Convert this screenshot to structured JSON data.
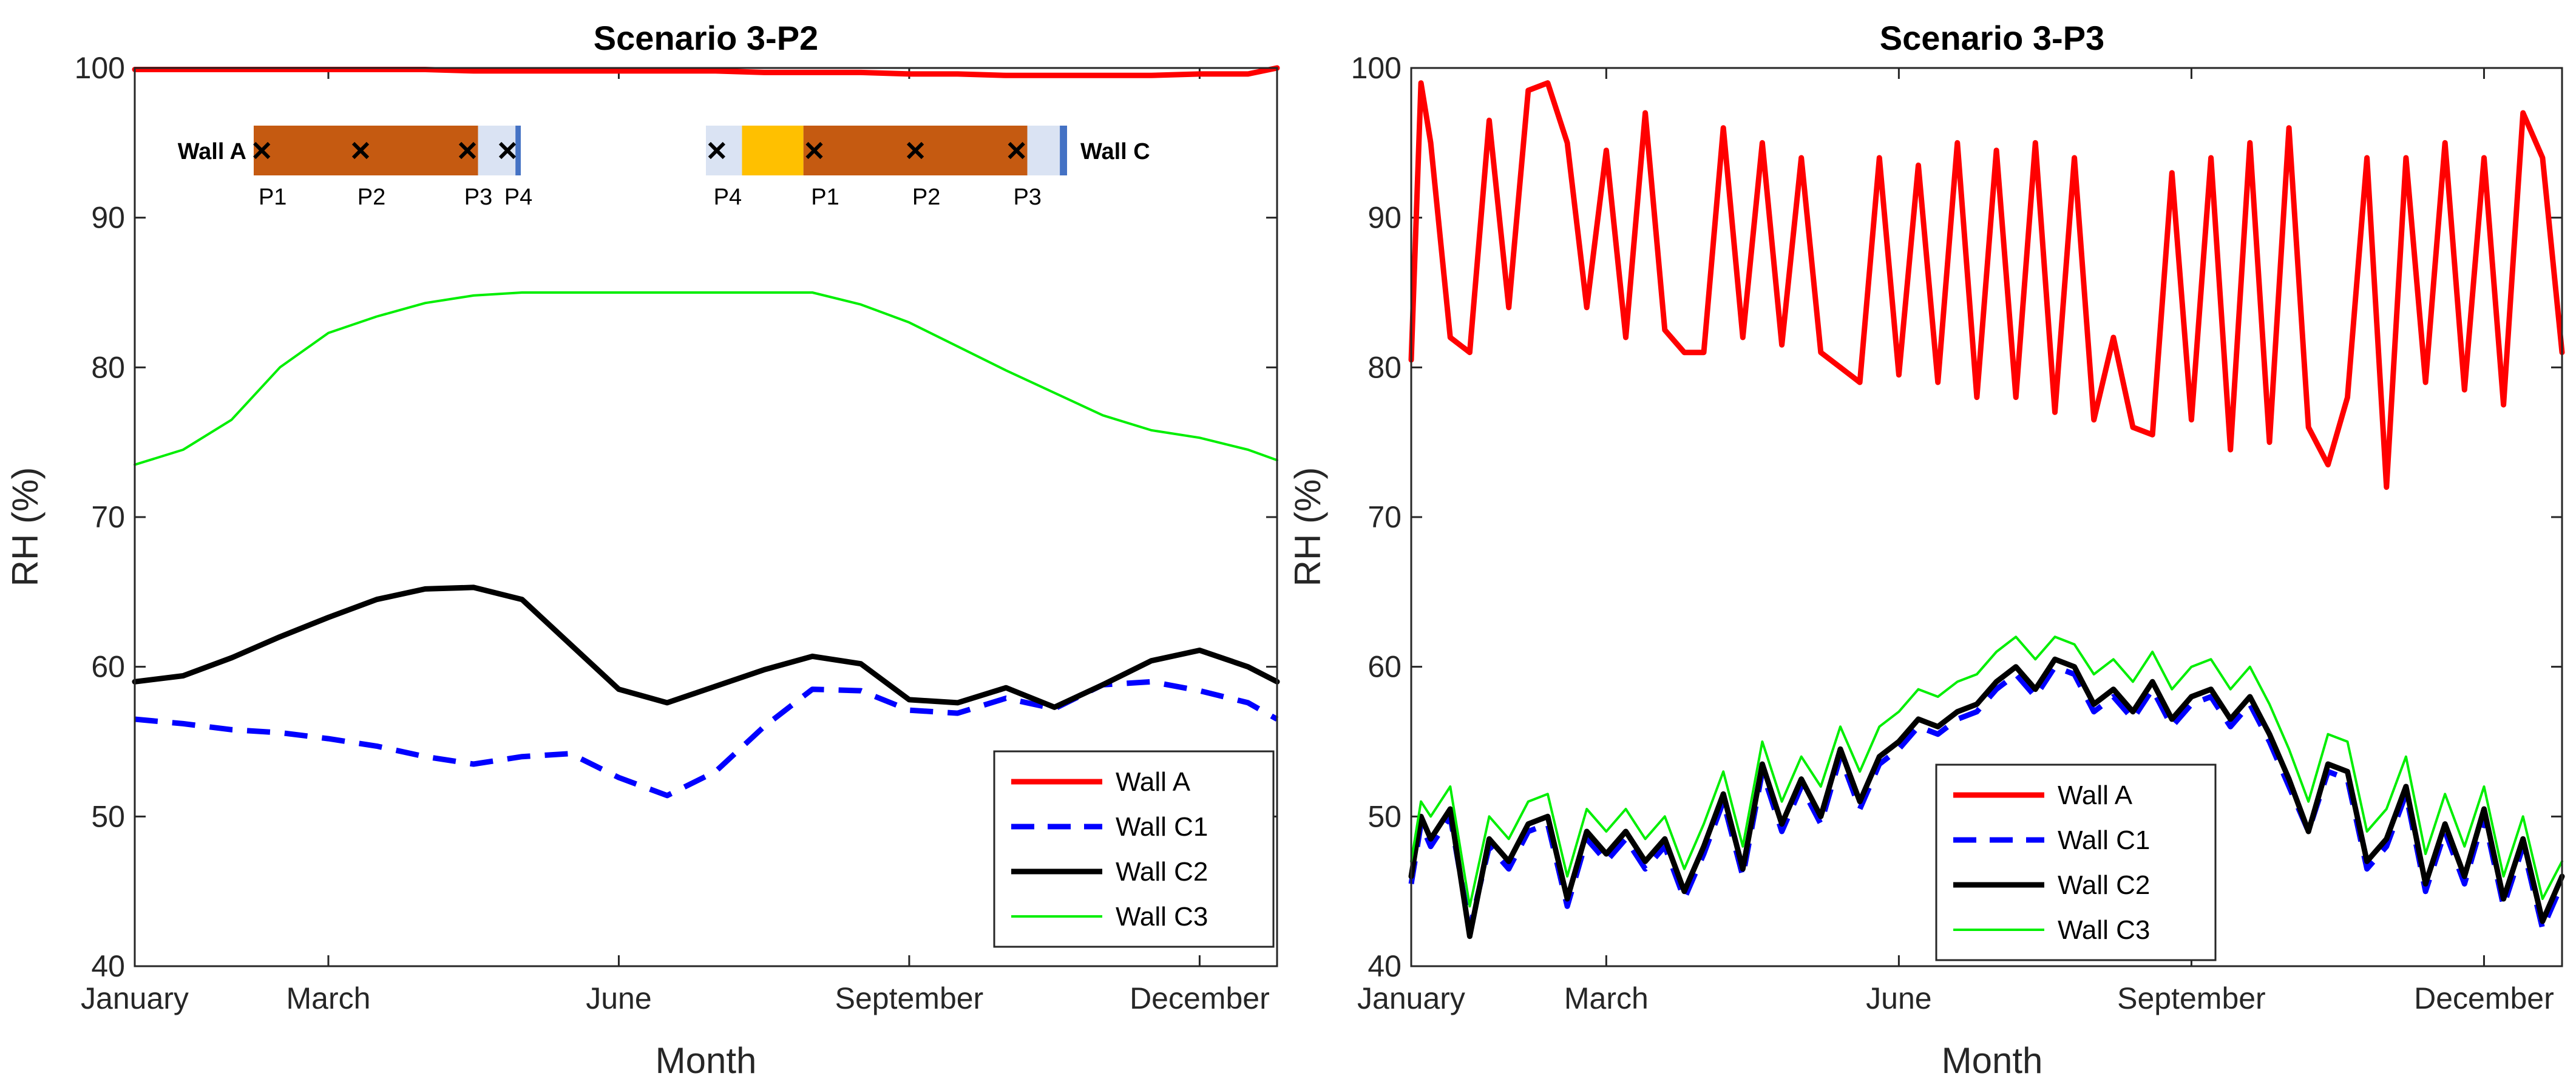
{
  "chart_data": [
    {
      "type": "line",
      "title": "Scenario 3-P2",
      "xlabel": "Month",
      "ylabel": "RH (%)",
      "xlim": [
        1,
        12.8
      ],
      "ylim": [
        40,
        100
      ],
      "yticks": [
        40,
        50,
        60,
        70,
        80,
        90,
        100
      ],
      "xticks": [
        {
          "month": 1,
          "label": "January"
        },
        {
          "month": 3,
          "label": "March"
        },
        {
          "month": 6,
          "label": "June"
        },
        {
          "month": 9,
          "label": "September"
        },
        {
          "month": 12,
          "label": "December"
        }
      ],
      "x": [
        1.0,
        1.5,
        2.0,
        2.5,
        3.0,
        3.5,
        4.0,
        4.5,
        5.0,
        5.5,
        6.0,
        6.5,
        7.0,
        7.5,
        8.0,
        8.5,
        9.0,
        9.5,
        10.0,
        10.5,
        11.0,
        11.5,
        12.0,
        12.5,
        12.8
      ],
      "series": [
        {
          "name": "Wall A",
          "color": "#ff0000",
          "dash": "solid",
          "width": "thick",
          "values": [
            99.9,
            99.9,
            99.9,
            99.9,
            99.9,
            99.9,
            99.9,
            99.8,
            99.8,
            99.8,
            99.8,
            99.8,
            99.8,
            99.7,
            99.7,
            99.7,
            99.6,
            99.6,
            99.5,
            99.5,
            99.5,
            99.5,
            99.6,
            99.6,
            100.0
          ]
        },
        {
          "name": "Wall C1",
          "color": "#0000ff",
          "dash": "dashed",
          "width": "thick",
          "values": [
            56.5,
            56.2,
            55.8,
            55.6,
            55.2,
            54.7,
            54.0,
            53.5,
            54.0,
            54.2,
            52.6,
            51.4,
            53.0,
            56.0,
            58.5,
            58.4,
            57.1,
            56.9,
            57.9,
            57.2,
            58.8,
            59.0,
            58.4,
            57.6,
            56.5
          ]
        },
        {
          "name": "Wall C2",
          "color": "#000000",
          "dash": "solid",
          "width": "thick",
          "values": [
            59.0,
            59.4,
            60.6,
            62.0,
            63.3,
            64.5,
            65.2,
            65.3,
            64.5,
            61.5,
            58.5,
            57.6,
            58.7,
            59.8,
            60.7,
            60.2,
            57.8,
            57.6,
            58.6,
            57.3,
            58.8,
            60.4,
            61.1,
            60.0,
            59.0
          ]
        },
        {
          "name": "Wall C3",
          "color": "#00ee00",
          "dash": "solid",
          "width": "thin",
          "values": [
            73.5,
            74.5,
            76.5,
            80.0,
            82.3,
            83.4,
            84.3,
            84.8,
            85.0,
            85.0,
            85.0,
            85.0,
            85.0,
            85.0,
            85.0,
            84.2,
            83.0,
            81.4,
            79.8,
            78.3,
            76.8,
            75.8,
            75.3,
            74.5,
            73.8
          ]
        }
      ],
      "legend": {
        "position": "bottom-right",
        "entries": [
          "Wall A",
          "Wall C1",
          "Wall C2",
          "Wall C3"
        ]
      },
      "inset": {
        "wall_a": {
          "label": "Wall A",
          "layers": [
            {
              "color": "#c55a11",
              "share": 0.84
            },
            {
              "color": "#dae3f3",
              "share": 0.14
            },
            {
              "color": "#4472c4",
              "share": 0.02
            }
          ],
          "points": [
            {
              "label": "P1",
              "pos": 0.03
            },
            {
              "label": "P2",
              "pos": 0.4
            },
            {
              "label": "P3",
              "pos": 0.8
            },
            {
              "label": "P4",
              "pos": 0.95
            }
          ]
        },
        "wall_c": {
          "label": "Wall C",
          "layers": [
            {
              "color": "#dae3f3",
              "share": 0.1
            },
            {
              "color": "#ffc000",
              "share": 0.17
            },
            {
              "color": "#c55a11",
              "share": 0.62
            },
            {
              "color": "#dae3f3",
              "share": 0.09
            },
            {
              "color": "#4472c4",
              "share": 0.02
            }
          ],
          "points": [
            {
              "label": "P4",
              "pos": 0.03
            },
            {
              "label": "P1",
              "pos": 0.3
            },
            {
              "label": "P2",
              "pos": 0.58
            },
            {
              "label": "P3",
              "pos": 0.86
            }
          ]
        }
      }
    },
    {
      "type": "line",
      "title": "Scenario 3-P3",
      "xlabel": "Month",
      "ylabel": "RH (%)",
      "xlim": [
        1,
        12.8
      ],
      "ylim": [
        40,
        100
      ],
      "yticks": [
        40,
        50,
        60,
        70,
        80,
        90,
        100
      ],
      "xticks": [
        {
          "month": 1,
          "label": "January"
        },
        {
          "month": 3,
          "label": "March"
        },
        {
          "month": 6,
          "label": "June"
        },
        {
          "month": 9,
          "label": "September"
        },
        {
          "month": 12,
          "label": "December"
        }
      ],
      "x": [
        1.0,
        1.1,
        1.2,
        1.4,
        1.6,
        1.8,
        2.0,
        2.2,
        2.4,
        2.6,
        2.8,
        3.0,
        3.2,
        3.4,
        3.6,
        3.8,
        4.0,
        4.2,
        4.4,
        4.6,
        4.8,
        5.0,
        5.2,
        5.4,
        5.6,
        5.8,
        6.0,
        6.2,
        6.4,
        6.6,
        6.8,
        7.0,
        7.2,
        7.4,
        7.6,
        7.8,
        8.0,
        8.2,
        8.4,
        8.6,
        8.8,
        9.0,
        9.2,
        9.4,
        9.6,
        9.8,
        10.0,
        10.2,
        10.4,
        10.6,
        10.8,
        11.0,
        11.2,
        11.4,
        11.6,
        11.8,
        12.0,
        12.2,
        12.4,
        12.6,
        12.8
      ],
      "series": [
        {
          "name": "Wall A",
          "color": "#ff0000",
          "dash": "solid",
          "width": "thick",
          "values": [
            80.5,
            99.0,
            95.0,
            82.0,
            81.0,
            96.5,
            84.0,
            98.5,
            99.0,
            95.0,
            84.0,
            94.5,
            82.0,
            97.0,
            82.5,
            81.0,
            81.0,
            96.0,
            82.0,
            95.0,
            81.5,
            94.0,
            81.0,
            80.0,
            79.0,
            94.0,
            79.5,
            93.5,
            79.0,
            95.0,
            78.0,
            94.5,
            78.0,
            95.0,
            77.0,
            94.0,
            76.5,
            82.0,
            76.0,
            75.5,
            93.0,
            76.5,
            94.0,
            74.5,
            95.0,
            75.0,
            96.0,
            76.0,
            73.5,
            78.0,
            94.0,
            72.0,
            94.0,
            79.0,
            95.0,
            78.5,
            94.0,
            77.5,
            97.0,
            94.0,
            81.0
          ]
        },
        {
          "name": "Wall C1",
          "color": "#0000ff",
          "dash": "dashed",
          "width": "thick",
          "values": [
            45.5,
            49.5,
            48.0,
            50.0,
            42.5,
            48.0,
            46.5,
            49.0,
            49.5,
            44.0,
            48.5,
            47.0,
            48.5,
            46.5,
            48.0,
            44.5,
            47.5,
            51.0,
            46.0,
            53.0,
            49.0,
            52.0,
            49.5,
            54.0,
            50.5,
            53.5,
            54.5,
            56.0,
            55.5,
            56.5,
            57.0,
            58.5,
            59.5,
            58.0,
            60.0,
            59.5,
            57.0,
            58.0,
            56.5,
            58.5,
            56.0,
            57.5,
            58.0,
            56.0,
            57.5,
            55.0,
            52.0,
            49.0,
            53.0,
            52.5,
            46.5,
            48.0,
            51.5,
            45.0,
            49.0,
            45.5,
            50.0,
            44.0,
            48.0,
            42.5,
            45.5
          ]
        },
        {
          "name": "Wall C2",
          "color": "#000000",
          "dash": "solid",
          "width": "thick",
          "values": [
            46.0,
            50.0,
            48.5,
            50.5,
            42.0,
            48.5,
            47.0,
            49.5,
            50.0,
            44.5,
            49.0,
            47.5,
            49.0,
            47.0,
            48.5,
            45.0,
            48.0,
            51.5,
            46.5,
            53.5,
            49.5,
            52.5,
            50.0,
            54.5,
            51.0,
            54.0,
            55.0,
            56.5,
            56.0,
            57.0,
            57.5,
            59.0,
            60.0,
            58.5,
            60.5,
            60.0,
            57.5,
            58.5,
            57.0,
            59.0,
            56.5,
            58.0,
            58.5,
            56.5,
            58.0,
            55.5,
            52.5,
            49.0,
            53.5,
            53.0,
            47.0,
            48.5,
            52.0,
            45.5,
            49.5,
            46.0,
            50.5,
            44.5,
            48.5,
            43.0,
            46.0
          ]
        },
        {
          "name": "Wall C3",
          "color": "#00ee00",
          "dash": "solid",
          "width": "thin",
          "values": [
            47.0,
            51.0,
            50.0,
            52.0,
            44.0,
            50.0,
            48.5,
            51.0,
            51.5,
            46.0,
            50.5,
            49.0,
            50.5,
            48.5,
            50.0,
            46.5,
            49.5,
            53.0,
            48.0,
            55.0,
            51.0,
            54.0,
            52.0,
            56.0,
            53.0,
            56.0,
            57.0,
            58.5,
            58.0,
            59.0,
            59.5,
            61.0,
            62.0,
            60.5,
            62.0,
            61.5,
            59.5,
            60.5,
            59.0,
            61.0,
            58.5,
            60.0,
            60.5,
            58.5,
            60.0,
            57.5,
            54.5,
            51.0,
            55.5,
            55.0,
            49.0,
            50.5,
            54.0,
            47.5,
            51.5,
            48.0,
            52.0,
            46.0,
            50.0,
            44.5,
            47.0
          ]
        }
      ],
      "legend": {
        "position": "bottom-center",
        "entries": [
          "Wall A",
          "Wall C1",
          "Wall C2",
          "Wall C3"
        ]
      }
    }
  ]
}
